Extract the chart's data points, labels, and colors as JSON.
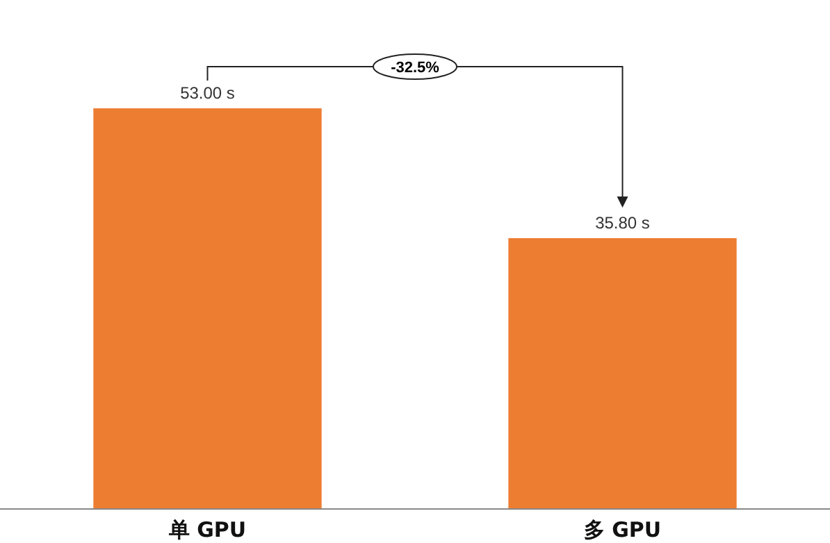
{
  "chart_data": {
    "type": "bar",
    "categories": [
      "单 GPU",
      "多 GPU"
    ],
    "values": [
      53.0,
      35.8
    ],
    "value_labels": [
      "53.00 s",
      "35.80 s"
    ],
    "color": "#ed7d31",
    "grid": false,
    "annotations": [
      "-32.5%"
    ]
  }
}
